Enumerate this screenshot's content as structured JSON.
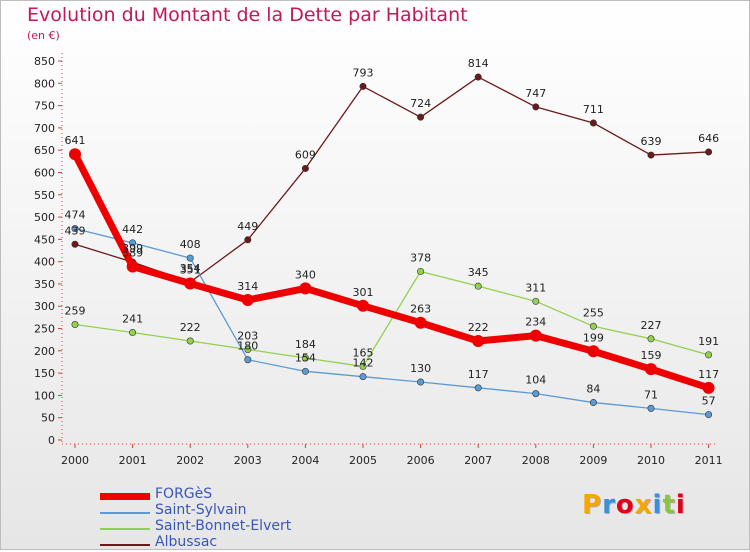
{
  "chart_data": {
    "type": "line",
    "title": "Evolution du Montant de la Dette par Habitant",
    "subtitle": "(en €)",
    "x": [
      "2000",
      "2001",
      "2002",
      "2003",
      "2004",
      "2005",
      "2006",
      "2007",
      "2008",
      "2009",
      "2010",
      "2011"
    ],
    "ylim": [
      0,
      850
    ],
    "yticks": [
      0,
      50,
      100,
      150,
      200,
      250,
      300,
      350,
      400,
      450,
      500,
      550,
      600,
      650,
      700,
      750,
      800,
      850
    ],
    "grid": false,
    "legend_position": "bottom-left",
    "series": [
      {
        "name": "FORGèS",
        "color": "#ee0000",
        "values": [
          641,
          389,
          351,
          314,
          340,
          301,
          263,
          222,
          234,
          199,
          159,
          117
        ]
      },
      {
        "name": "Saint-Sylvain",
        "color": "#5b9bd5",
        "values": [
          474,
          442,
          408,
          180,
          154,
          142,
          130,
          117,
          104,
          84,
          71,
          57
        ]
      },
      {
        "name": "Saint-Bonnet-Elvert",
        "color": "#92d050",
        "values": [
          259,
          241,
          222,
          203,
          184,
          165,
          378,
          345,
          311,
          255,
          227,
          191
        ]
      },
      {
        "name": "Albussac",
        "color": "#6b1a1a",
        "values": [
          439,
          399,
          354,
          449,
          609,
          793,
          724,
          814,
          747,
          711,
          639,
          646
        ]
      }
    ]
  },
  "logo": {
    "letters": [
      "P",
      "r",
      "o",
      "x",
      "i",
      "t",
      "i"
    ],
    "colors": [
      "#f7a600",
      "#3b8fd9",
      "#e2001a",
      "#f7a600",
      "#3b8fd9",
      "#8bc53f",
      "#e2001a"
    ]
  }
}
